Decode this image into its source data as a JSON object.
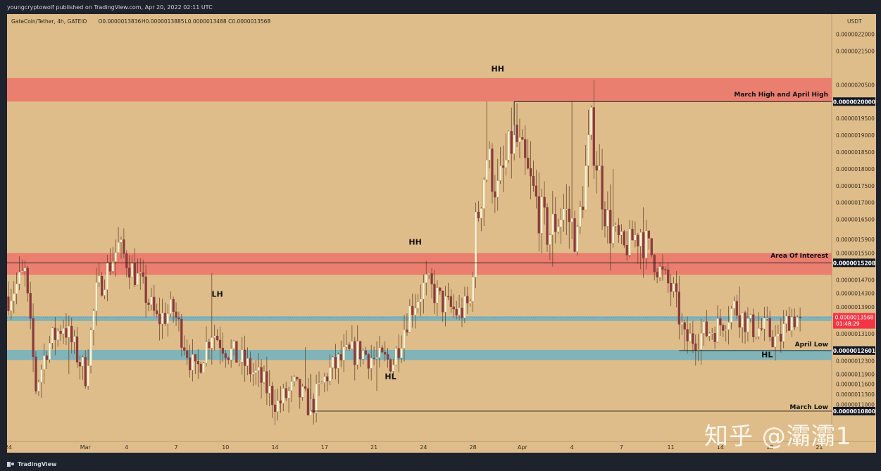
{
  "publisher": "youngcryptowolf published on TradingView.com, Apr 20, 2022 02:11 UTC",
  "brand": "TradingView",
  "watermark": "知乎 @灞灞1",
  "colors": {
    "frame": "#1e222d",
    "plot_bg": "#dfbd8b",
    "zone_red": "#ea7a6e",
    "zone_blue": "#7ab3bb",
    "candle_up": "#fff3d2",
    "candle_down": "#8a3b3b",
    "wick": "#6b4a30",
    "line": "#1a1a1a",
    "last_price": "#f23645"
  },
  "chart_data": {
    "type": "candlestick",
    "symbol": "GateCoin/Tether, 4h, GATEIO",
    "ohlc_header": [
      "O0.0000013836",
      "H0.0000013885",
      "L0.0000013488",
      "C0.0000013568"
    ],
    "y_unit": "USDT",
    "ylim": [
      9.9e-07,
      2.26e-06
    ],
    "y_ticks": [
      {
        "v": 2.2e-06,
        "l": "0.0000022000"
      },
      {
        "v": 2.15e-06,
        "l": "0.0000021500"
      },
      {
        "v": 2.05e-06,
        "l": "0.0000020500"
      },
      {
        "v": 1.95e-06,
        "l": "0.0000019500"
      },
      {
        "v": 1.9e-06,
        "l": "0.0000019000"
      },
      {
        "v": 1.85e-06,
        "l": "0.0000018500"
      },
      {
        "v": 1.8e-06,
        "l": "0.0000018000"
      },
      {
        "v": 1.75e-06,
        "l": "0.0000017500"
      },
      {
        "v": 1.7e-06,
        "l": "0.0000017000"
      },
      {
        "v": 1.65e-06,
        "l": "0.0000016500"
      },
      {
        "v": 1.59e-06,
        "l": "0.0000015900"
      },
      {
        "v": 1.55e-06,
        "l": "0.0000015500"
      },
      {
        "v": 1.47e-06,
        "l": "0.0000014700"
      },
      {
        "v": 1.43e-06,
        "l": "0.0000014300"
      },
      {
        "v": 1.39e-06,
        "l": "0.0000013900"
      },
      {
        "v": 1.31e-06,
        "l": "0.0000013100"
      },
      {
        "v": 1.23e-06,
        "l": "0.0000012300"
      },
      {
        "v": 1.19e-06,
        "l": "0.0000011900"
      },
      {
        "v": 1.16e-06,
        "l": "0.0000011600"
      },
      {
        "v": 1.13e-06,
        "l": "0.0000011300"
      },
      {
        "v": 1.1e-06,
        "l": "0.0000011000"
      }
    ],
    "x_ticks": [
      {
        "i": 0,
        "l": "24"
      },
      {
        "i": 28,
        "l": "Mar"
      },
      {
        "i": 43,
        "l": "4"
      },
      {
        "i": 61,
        "l": "7"
      },
      {
        "i": 79,
        "l": "10"
      },
      {
        "i": 97,
        "l": "14"
      },
      {
        "i": 115,
        "l": "17"
      },
      {
        "i": 133,
        "l": "21"
      },
      {
        "i": 151,
        "l": "24"
      },
      {
        "i": 169,
        "l": "28"
      },
      {
        "i": 187,
        "l": "Apr"
      },
      {
        "i": 205,
        "l": "4"
      },
      {
        "i": 223,
        "l": "7"
      },
      {
        "i": 241,
        "l": "11"
      },
      {
        "i": 259,
        "l": "14"
      },
      {
        "i": 277,
        "l": "18"
      },
      {
        "i": 295,
        "l": "21"
      }
    ],
    "n_bars": 300,
    "zones": [
      {
        "from": 2e-06,
        "to": 2.07e-06,
        "color": "red"
      },
      {
        "from": 1.485e-06,
        "to": 1.55e-06,
        "color": "red"
      },
      {
        "from": 1.348e-06,
        "to": 1.362e-06,
        "color": "blue"
      },
      {
        "from": 1.232e-06,
        "to": 1.262e-06,
        "color": "blue"
      }
    ],
    "levels": [
      {
        "price": 2e-06,
        "from_i": 184,
        "label": "0.0000020000"
      },
      {
        "price": 1.5208e-06,
        "from_i": -3,
        "label": "0.0000015208"
      },
      {
        "price": 1.2601e-06,
        "from_i": 244,
        "label": "0.0000012601"
      },
      {
        "price": 1.08e-06,
        "from_i": 110,
        "label": "0.0000010800"
      }
    ],
    "last_price": {
      "price": 1.3568e-06,
      "label": "0.0000013568",
      "countdown": "01:48:29"
    },
    "annotations": [
      {
        "text": "HH",
        "i": 178,
        "price": 2.09e-06,
        "anchor": "middle"
      },
      {
        "text": "HH",
        "i": 148,
        "price": 1.575e-06,
        "anchor": "middle"
      },
      {
        "text": "LH",
        "i": 76,
        "price": 1.42e-06,
        "anchor": "middle"
      },
      {
        "text": "HL",
        "i": 139,
        "price": 1.175e-06,
        "anchor": "middle"
      },
      {
        "text": "HL",
        "i": 276,
        "price": 1.24e-06,
        "anchor": "middle"
      },
      {
        "text": "March High and April High",
        "i": 295,
        "price": 2.015e-06,
        "anchor": "end"
      },
      {
        "text": "Area Of Interest",
        "i": 295,
        "price": 1.536e-06,
        "anchor": "end"
      },
      {
        "text": "April Low",
        "i": 295,
        "price": 1.272e-06,
        "anchor": "end"
      },
      {
        "text": "March Low",
        "i": 295,
        "price": 1.086e-06,
        "anchor": "end"
      }
    ],
    "anchors": [
      [
        0,
        1.42e-06
      ],
      [
        6,
        1.49e-06
      ],
      [
        10,
        1.15e-06
      ],
      [
        14,
        1.27e-06
      ],
      [
        20,
        1.34e-06
      ],
      [
        28,
        1.19e-06
      ],
      [
        32,
        1.43e-06
      ],
      [
        40,
        1.57e-06
      ],
      [
        48,
        1.46e-06
      ],
      [
        54,
        1.35e-06
      ],
      [
        60,
        1.38e-06
      ],
      [
        68,
        1.19e-06
      ],
      [
        74,
        1.32e-06
      ],
      [
        80,
        1.26e-06
      ],
      [
        86,
        1.22e-06
      ],
      [
        92,
        1.17e-06
      ],
      [
        98,
        1.1e-06
      ],
      [
        104,
        1.15e-06
      ],
      [
        110,
        1.09e-06
      ],
      [
        116,
        1.19e-06
      ],
      [
        122,
        1.24e-06
      ],
      [
        128,
        1.26e-06
      ],
      [
        134,
        1.23e-06
      ],
      [
        140,
        1.23e-06
      ],
      [
        146,
        1.38e-06
      ],
      [
        152,
        1.46e-06
      ],
      [
        158,
        1.4e-06
      ],
      [
        164,
        1.37e-06
      ],
      [
        168,
        1.4e-06
      ],
      [
        170,
        1.62e-06
      ],
      [
        174,
        1.84e-06
      ],
      [
        178,
        1.73e-06
      ],
      [
        184,
        1.9e-06
      ],
      [
        190,
        1.75e-06
      ],
      [
        196,
        1.6e-06
      ],
      [
        202,
        1.68e-06
      ],
      [
        207,
        1.6e-06
      ],
      [
        212,
        1.92e-06
      ],
      [
        218,
        1.64e-06
      ],
      [
        224,
        1.56e-06
      ],
      [
        230,
        1.62e-06
      ],
      [
        236,
        1.51e-06
      ],
      [
        242,
        1.43e-06
      ],
      [
        246,
        1.29e-06
      ],
      [
        250,
        1.3e-06
      ],
      [
        258,
        1.33e-06
      ],
      [
        264,
        1.39e-06
      ],
      [
        270,
        1.33e-06
      ],
      [
        276,
        1.32e-06
      ],
      [
        280,
        1.28e-06
      ],
      [
        284,
        1.36e-06
      ],
      [
        288,
        1.3568e-06
      ]
    ],
    "spikes": [
      [
        4,
        1.54e-06,
        "h"
      ],
      [
        10,
        1.13e-06,
        "l"
      ],
      [
        22,
        1.19e-06,
        "l"
      ],
      [
        39,
        1.59e-06,
        "h"
      ],
      [
        66,
        1.18e-06,
        "l"
      ],
      [
        74,
        1.49e-06,
        "h"
      ],
      [
        100,
        1.08e-06,
        "l"
      ],
      [
        108,
        1.27e-06,
        "h"
      ],
      [
        110,
        1.08e-06,
        "l"
      ],
      [
        134,
        1.14e-06,
        "l"
      ],
      [
        153,
        1.49e-06,
        "h"
      ],
      [
        170,
        1.7e-06,
        "h"
      ],
      [
        174,
        2e-06,
        "h"
      ],
      [
        184,
        2e-06,
        "h"
      ],
      [
        198,
        1.51e-06,
        "l"
      ],
      [
        205,
        2e-06,
        "h"
      ],
      [
        220,
        1.8e-06,
        "h"
      ],
      [
        233,
        1.59e-06,
        "h"
      ],
      [
        246,
        1.2601e-06,
        "l"
      ],
      [
        266,
        1.45e-06,
        "h"
      ],
      [
        278,
        1.27e-06,
        "l"
      ]
    ]
  }
}
